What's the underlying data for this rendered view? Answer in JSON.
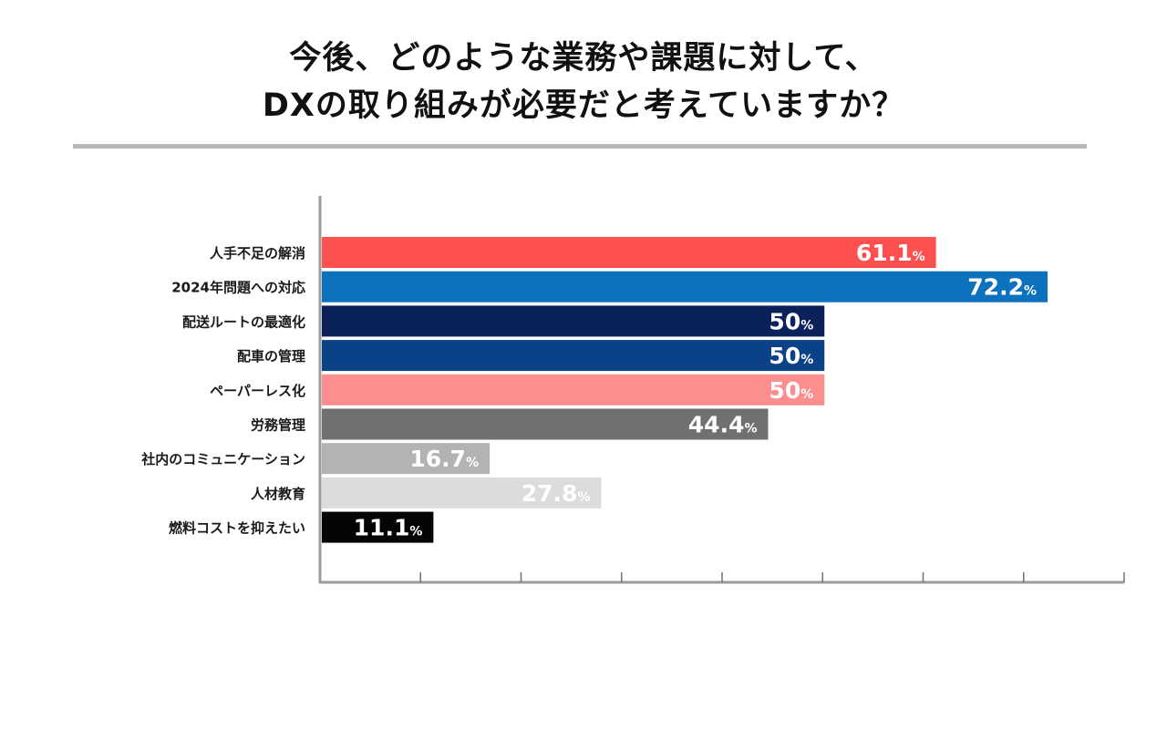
{
  "title": {
    "line1": "今後、どのような業務や課題に対して、",
    "line2": "DXの取り組みが必要だと考えていますか？"
  },
  "chart_data": {
    "type": "bar",
    "orientation": "horizontal",
    "title": "今後、どのような業務や課題に対して、DXの取り組みが必要だと考えていますか？",
    "xlabel": "",
    "ylabel": "",
    "xlim": [
      0,
      80
    ],
    "unit": "%",
    "grid": false,
    "categories": [
      "人手不足の解消",
      "2024年問題への対応",
      "配送ルートの最適化",
      "配車の管理",
      "ペーパーレス化",
      "労務管理",
      "社内のコミュニケーション",
      "人材教育",
      "燃料コストを抑えたい"
    ],
    "values": [
      61.1,
      72.2,
      50,
      50,
      50,
      44.4,
      16.7,
      27.8,
      11.1
    ],
    "labels": [
      "61.1",
      "72.2",
      "50",
      "50",
      "50",
      "44.4",
      "16.7",
      "27.8",
      "11.1"
    ],
    "colors": [
      "#ff5050",
      "#0d72bd",
      "#0b215a",
      "#0b4287",
      "#fc8e8d",
      "#707070",
      "#b3b3b3",
      "#dcdcdc",
      "#050505"
    ]
  }
}
